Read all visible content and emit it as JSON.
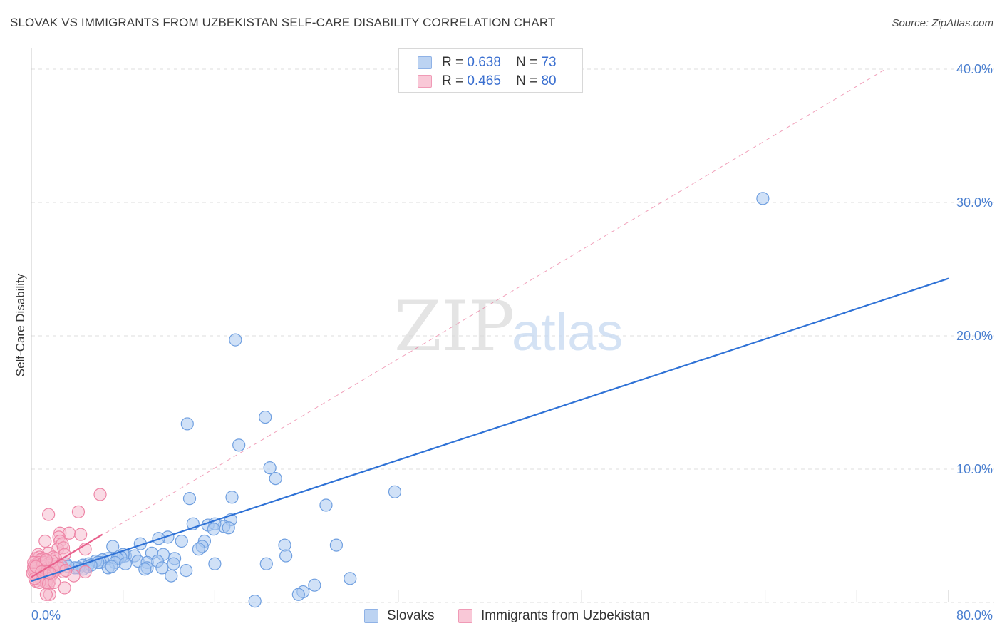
{
  "title": "SLOVAK VS IMMIGRANTS FROM UZBEKISTAN SELF-CARE DISABILITY CORRELATION CHART",
  "source": "Source: ZipAtlas.com",
  "watermark": {
    "zip": "ZIP",
    "atlas": "atlas"
  },
  "legend": {
    "r_label": "R =",
    "n_label": "N =",
    "slovaks": {
      "r": "0.638",
      "n": "73"
    },
    "uzbek": {
      "r": "0.465",
      "n": "80"
    }
  },
  "colors": {
    "slovaks_fill": "#a9c8f0",
    "slovaks_stroke": "#6f9fe0",
    "slovaks_line": "#2f72d6",
    "uzbek_fill": "#f6b8cb",
    "uzbek_stroke": "#ee85a6",
    "uzbek_line": "#e8608c",
    "tick_text": "#4a7fd0",
    "grid": "#dddddd"
  },
  "chart_data": {
    "type": "scatter",
    "title": "SLOVAK VS IMMIGRANTS FROM UZBEKISTAN SELF-CARE DISABILITY CORRELATION CHART",
    "xlabel": "",
    "ylabel": "Self-Care Disability",
    "xlim": [
      0,
      80
    ],
    "ylim": [
      0,
      42
    ],
    "x_tick_labels": [
      {
        "value": 0,
        "label": "0.0%"
      },
      {
        "value": 80,
        "label": "80.0%"
      }
    ],
    "y_ticks": [
      {
        "value": 10,
        "label": "10.0%"
      },
      {
        "value": 20,
        "label": "20.0%"
      },
      {
        "value": 30,
        "label": "30.0%"
      },
      {
        "value": 40,
        "label": "40.0%"
      }
    ],
    "x_gridlines": [
      8,
      16,
      32,
      40,
      48,
      64,
      72,
      80
    ],
    "series": [
      {
        "name": "Slovaks",
        "r": 0.638,
        "n": 73,
        "trend": {
          "x": [
            0,
            80
          ],
          "y": [
            1.6,
            24.3
          ]
        },
        "points": [
          [
            63.8,
            30.3
          ],
          [
            17.8,
            19.7
          ],
          [
            20.4,
            13.9
          ],
          [
            13.6,
            13.4
          ],
          [
            18.1,
            11.8
          ],
          [
            20.8,
            10.1
          ],
          [
            21.3,
            9.3
          ],
          [
            31.7,
            8.3
          ],
          [
            17.5,
            7.9
          ],
          [
            13.8,
            7.8
          ],
          [
            25.7,
            7.3
          ],
          [
            17.4,
            6.2
          ],
          [
            14.1,
            5.9
          ],
          [
            15.4,
            5.8
          ],
          [
            16.8,
            5.7
          ],
          [
            16.0,
            5.9
          ],
          [
            17.2,
            5.6
          ],
          [
            15.9,
            5.5
          ],
          [
            11.9,
            4.9
          ],
          [
            11.1,
            4.8
          ],
          [
            15.1,
            4.6
          ],
          [
            13.1,
            4.6
          ],
          [
            14.9,
            4.2
          ],
          [
            22.1,
            4.3
          ],
          [
            26.6,
            4.3
          ],
          [
            7.1,
            4.2
          ],
          [
            9.5,
            4.4
          ],
          [
            14.6,
            4.0
          ],
          [
            11.5,
            3.6
          ],
          [
            8.2,
            3.5
          ],
          [
            10.5,
            3.7
          ],
          [
            12.5,
            3.3
          ],
          [
            9.0,
            3.5
          ],
          [
            22.2,
            3.5
          ],
          [
            8.0,
            3.6
          ],
          [
            7.8,
            3.4
          ],
          [
            6.7,
            3.3
          ],
          [
            7.5,
            3.3
          ],
          [
            11.0,
            3.1
          ],
          [
            9.3,
            3.1
          ],
          [
            10.1,
            3.0
          ],
          [
            6.2,
            3.2
          ],
          [
            7.3,
            3.0
          ],
          [
            6.0,
            3.0
          ],
          [
            5.6,
            3.1
          ],
          [
            5.8,
            3.0
          ],
          [
            16.0,
            2.9
          ],
          [
            20.5,
            2.9
          ],
          [
            12.4,
            2.9
          ],
          [
            8.2,
            2.9
          ],
          [
            5.0,
            2.9
          ],
          [
            4.5,
            2.8
          ],
          [
            4.9,
            2.7
          ],
          [
            5.2,
            2.8
          ],
          [
            3.0,
            2.9
          ],
          [
            4.1,
            2.6
          ],
          [
            4.5,
            2.5
          ],
          [
            3.8,
            2.6
          ],
          [
            3.2,
            2.7
          ],
          [
            2.5,
            2.8
          ],
          [
            2.0,
            2.7
          ],
          [
            6.7,
            2.6
          ],
          [
            11.4,
            2.6
          ],
          [
            13.5,
            2.4
          ],
          [
            10.1,
            2.6
          ],
          [
            9.9,
            2.5
          ],
          [
            12.2,
            2.0
          ],
          [
            27.8,
            1.8
          ],
          [
            24.7,
            1.3
          ],
          [
            23.7,
            0.8
          ],
          [
            23.3,
            0.6
          ],
          [
            19.5,
            0.1
          ],
          [
            7.0,
            2.7
          ]
        ]
      },
      {
        "name": "Immigrants from Uzbekistan",
        "r": 0.465,
        "n": 80,
        "trend": {
          "x": [
            0,
            6.2
          ],
          "y": [
            1.9,
            5.1
          ]
        },
        "trend_extension": {
          "x": [
            0,
            74.5
          ],
          "y": [
            1.9,
            40.0
          ]
        },
        "points": [
          [
            6.0,
            8.1
          ],
          [
            4.1,
            6.8
          ],
          [
            1.5,
            6.6
          ],
          [
            2.5,
            5.2
          ],
          [
            3.3,
            5.2
          ],
          [
            4.3,
            5.1
          ],
          [
            2.4,
            4.9
          ],
          [
            1.2,
            4.6
          ],
          [
            2.5,
            4.6
          ],
          [
            2.7,
            4.4
          ],
          [
            4.7,
            4.0
          ],
          [
            2.3,
            4.0
          ],
          [
            2.8,
            4.1
          ],
          [
            1.5,
            3.7
          ],
          [
            0.6,
            3.6
          ],
          [
            0.7,
            3.4
          ],
          [
            1.9,
            3.4
          ],
          [
            2.9,
            3.6
          ],
          [
            1.0,
            3.3
          ],
          [
            0.4,
            3.3
          ],
          [
            0.8,
            3.2
          ],
          [
            2.1,
            3.3
          ],
          [
            0.6,
            3.0
          ],
          [
            1.1,
            3.0
          ],
          [
            1.5,
            2.9
          ],
          [
            0.5,
            2.9
          ],
          [
            0.3,
            2.8
          ],
          [
            1.7,
            2.8
          ],
          [
            2.2,
            2.9
          ],
          [
            0.9,
            2.7
          ],
          [
            0.2,
            2.7
          ],
          [
            1.2,
            2.7
          ],
          [
            2.6,
            2.8
          ],
          [
            0.6,
            2.6
          ],
          [
            1.4,
            2.6
          ],
          [
            0.3,
            2.5
          ],
          [
            1.9,
            2.5
          ],
          [
            0.8,
            2.5
          ],
          [
            1.1,
            2.4
          ],
          [
            0.5,
            2.4
          ],
          [
            2.0,
            2.4
          ],
          [
            0.2,
            2.3
          ],
          [
            1.5,
            2.3
          ],
          [
            0.7,
            2.3
          ],
          [
            2.8,
            2.3
          ],
          [
            4.7,
            2.3
          ],
          [
            0.4,
            2.2
          ],
          [
            1.2,
            2.2
          ],
          [
            0.9,
            2.1
          ],
          [
            0.3,
            2.1
          ],
          [
            1.8,
            2.1
          ],
          [
            0.6,
            2.0
          ],
          [
            1.3,
            2.0
          ],
          [
            3.7,
            2.0
          ],
          [
            0.5,
            1.9
          ],
          [
            0.8,
            1.8
          ],
          [
            1.5,
            1.8
          ],
          [
            0.9,
            1.7
          ],
          [
            1.1,
            1.6
          ],
          [
            0.4,
            1.6
          ],
          [
            1.6,
            1.6
          ],
          [
            1.3,
            1.5
          ],
          [
            0.7,
            1.5
          ],
          [
            1.5,
            1.4
          ],
          [
            2.0,
            1.5
          ],
          [
            2.9,
            1.1
          ],
          [
            1.6,
            0.6
          ],
          [
            1.3,
            0.6
          ],
          [
            0.2,
            2.6
          ],
          [
            0.1,
            2.2
          ],
          [
            0.2,
            3.0
          ],
          [
            0.3,
            1.8
          ],
          [
            1.0,
            2.9
          ],
          [
            1.8,
            3.1
          ],
          [
            2.4,
            2.6
          ],
          [
            3.0,
            2.4
          ],
          [
            0.4,
            2.7
          ],
          [
            0.9,
            2.3
          ],
          [
            1.3,
            3.2
          ],
          [
            1.6,
            2.2
          ]
        ]
      }
    ]
  },
  "bottom_legend": {
    "slovaks": "Slovaks",
    "uzbek": "Immigrants from Uzbekistan"
  }
}
